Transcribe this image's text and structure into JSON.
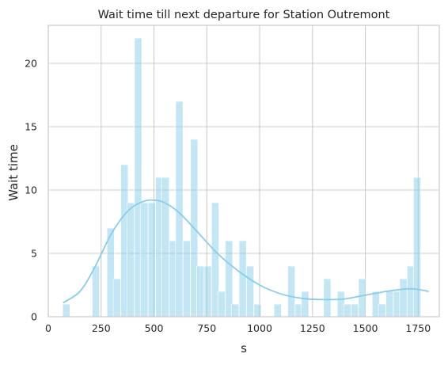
{
  "chart_data": {
    "type": "bar",
    "subtype": "histogram-with-kde",
    "title": "Wait time till next departure for Station Outremont",
    "xlabel": "s",
    "ylabel": "Wait time",
    "xlim": [
      0,
      1850
    ],
    "ylim": [
      0,
      23
    ],
    "xticks": [
      0,
      250,
      500,
      750,
      1000,
      1250,
      1500,
      1750
    ],
    "yticks": [
      0,
      5,
      10,
      15,
      20
    ],
    "grid": true,
    "bin_width": 35,
    "bins": [
      {
        "x": 85,
        "value": 1
      },
      {
        "x": 225,
        "value": 4
      },
      {
        "x": 295,
        "value": 7
      },
      {
        "x": 325,
        "value": 3
      },
      {
        "x": 360,
        "value": 12
      },
      {
        "x": 390,
        "value": 9
      },
      {
        "x": 425,
        "value": 22
      },
      {
        "x": 455,
        "value": 9
      },
      {
        "x": 490,
        "value": 9
      },
      {
        "x": 525,
        "value": 11
      },
      {
        "x": 555,
        "value": 11
      },
      {
        "x": 590,
        "value": 6
      },
      {
        "x": 620,
        "value": 17
      },
      {
        "x": 655,
        "value": 6
      },
      {
        "x": 690,
        "value": 14
      },
      {
        "x": 720,
        "value": 4
      },
      {
        "x": 755,
        "value": 4
      },
      {
        "x": 790,
        "value": 9
      },
      {
        "x": 820,
        "value": 2
      },
      {
        "x": 855,
        "value": 6
      },
      {
        "x": 885,
        "value": 1
      },
      {
        "x": 920,
        "value": 6
      },
      {
        "x": 955,
        "value": 4
      },
      {
        "x": 990,
        "value": 1
      },
      {
        "x": 1085,
        "value": 1
      },
      {
        "x": 1150,
        "value": 4
      },
      {
        "x": 1185,
        "value": 1
      },
      {
        "x": 1215,
        "value": 2
      },
      {
        "x": 1320,
        "value": 3
      },
      {
        "x": 1385,
        "value": 2
      },
      {
        "x": 1415,
        "value": 1
      },
      {
        "x": 1450,
        "value": 1
      },
      {
        "x": 1485,
        "value": 3
      },
      {
        "x": 1550,
        "value": 2
      },
      {
        "x": 1580,
        "value": 1
      },
      {
        "x": 1615,
        "value": 2
      },
      {
        "x": 1650,
        "value": 2
      },
      {
        "x": 1680,
        "value": 3
      },
      {
        "x": 1715,
        "value": 4
      },
      {
        "x": 1745,
        "value": 11
      }
    ],
    "kde": {
      "x": [
        70,
        150,
        220,
        300,
        380,
        450,
        500,
        550,
        620,
        700,
        800,
        900,
        1000,
        1100,
        1200,
        1300,
        1400,
        1500,
        1600,
        1700,
        1750,
        1800
      ],
      "y": [
        1.1,
        2.0,
        3.9,
        6.6,
        8.4,
        9.1,
        9.2,
        9.0,
        8.2,
        6.8,
        5.0,
        3.6,
        2.5,
        1.8,
        1.45,
        1.35,
        1.4,
        1.7,
        2.0,
        2.2,
        2.15,
        2.0
      ]
    },
    "colors": {
      "bar_fill": "#87ceeb",
      "bar_opacity": 0.5,
      "bar_edge": "#ffffff",
      "kde_line": "#87ceeb",
      "grid": "#cccccc",
      "axes_edge": "#cccccc"
    }
  }
}
